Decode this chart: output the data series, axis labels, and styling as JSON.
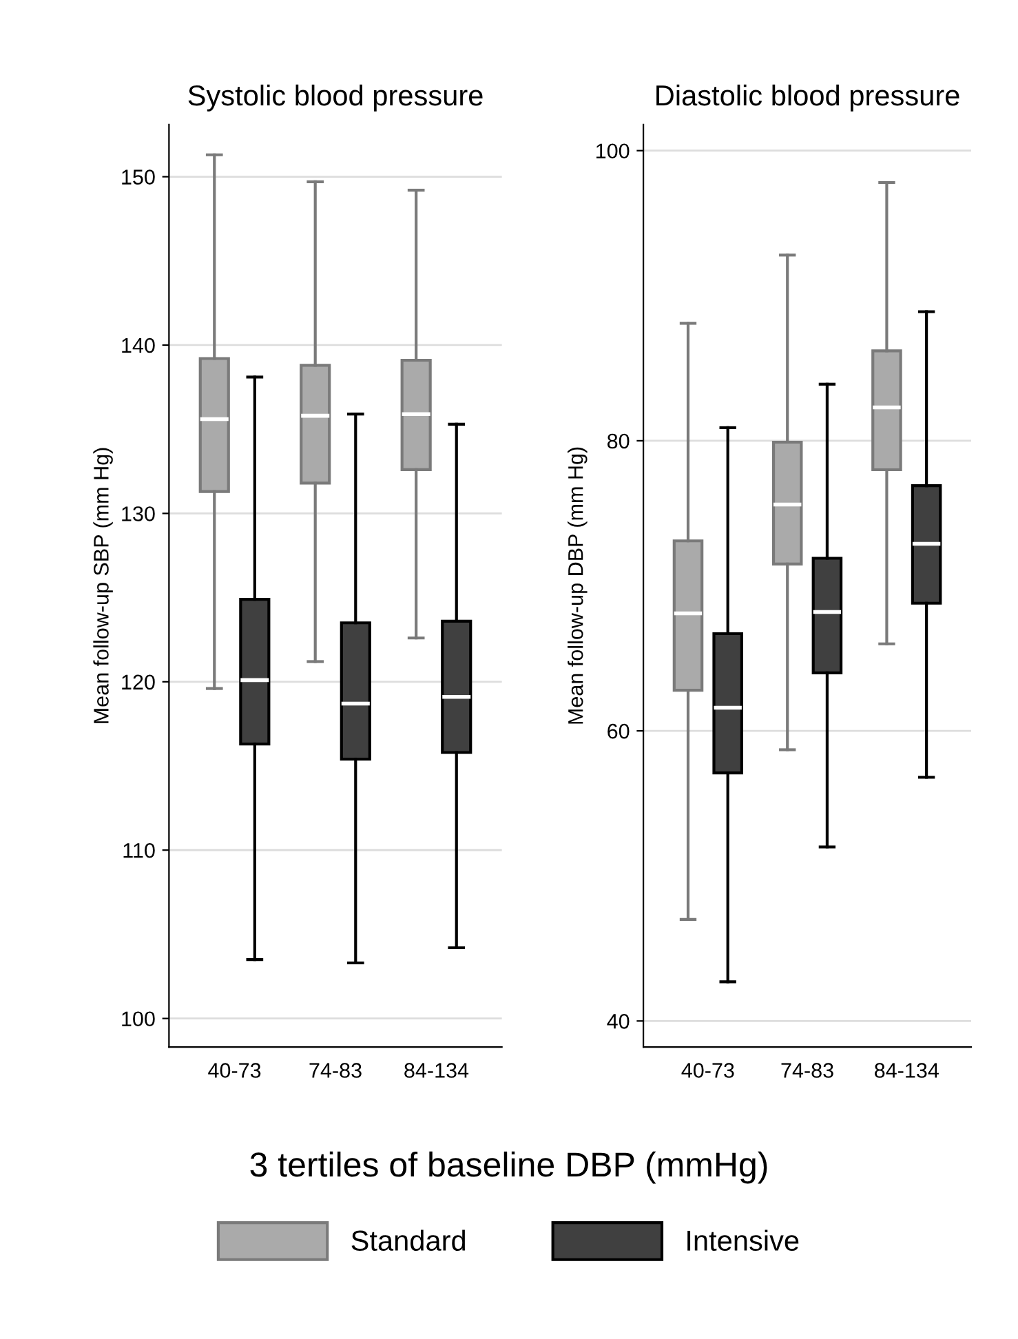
{
  "chart_data": [
    {
      "type": "box",
      "title": "Systolic blood pressure",
      "ylabel": "Mean follow-up SBP (mm Hg)",
      "xlabel": "3 tertiles of baseline DBP (mmHg)",
      "categories": [
        "40-73",
        "74-83",
        "84-134"
      ],
      "ylim": [
        98.3,
        153.1
      ],
      "yticks": [
        100,
        110,
        120,
        130,
        140,
        150
      ],
      "grid": "y",
      "legend": "bottom",
      "series": [
        {
          "name": "Standard",
          "color": "#aaaaaa",
          "boxes": [
            {
              "low": 119.6,
              "q1": 131.3,
              "median": 135.6,
              "q3": 139.2,
              "high": 151.3
            },
            {
              "low": 121.2,
              "q1": 131.8,
              "median": 135.8,
              "q3": 138.8,
              "high": 149.7
            },
            {
              "low": 122.6,
              "q1": 132.6,
              "median": 135.9,
              "q3": 139.1,
              "high": 149.2
            }
          ]
        },
        {
          "name": "Intensive",
          "color": "#404040",
          "boxes": [
            {
              "low": 103.5,
              "q1": 116.3,
              "median": 120.1,
              "q3": 124.9,
              "high": 138.1
            },
            {
              "low": 103.3,
              "q1": 115.4,
              "median": 118.7,
              "q3": 123.5,
              "high": 135.9
            },
            {
              "low": 104.2,
              "q1": 115.8,
              "median": 119.1,
              "q3": 123.6,
              "high": 135.3
            }
          ]
        }
      ]
    },
    {
      "type": "box",
      "title": "Diastolic blood pressure",
      "ylabel": "Mean follow-up DBP (mm Hg)",
      "categories": [
        "40-73",
        "74-83",
        "84-134"
      ],
      "ylim": [
        38.2,
        101.8
      ],
      "yticks": [
        40,
        60,
        80,
        100
      ],
      "grid": "y",
      "series": [
        {
          "color": "#aaaaaa",
          "boxes": [
            {
              "low": 47.0,
              "q1": 62.8,
              "median": 68.1,
              "q3": 73.1,
              "high": 88.1
            },
            {
              "low": 58.7,
              "q1": 71.5,
              "median": 75.6,
              "q3": 79.9,
              "high": 92.8
            },
            {
              "low": 66.0,
              "q1": 78.0,
              "median": 82.3,
              "q3": 86.2,
              "high": 97.8
            }
          ]
        },
        {
          "color": "#404040",
          "boxes": [
            {
              "low": 42.7,
              "q1": 57.1,
              "median": 61.6,
              "q3": 66.7,
              "high": 80.9
            },
            {
              "low": 52.0,
              "q1": 64.0,
              "median": 68.2,
              "q3": 71.9,
              "high": 83.9
            },
            {
              "low": 56.8,
              "q1": 68.8,
              "median": 72.9,
              "q3": 76.9,
              "high": 88.9
            }
          ]
        }
      ]
    }
  ]
}
